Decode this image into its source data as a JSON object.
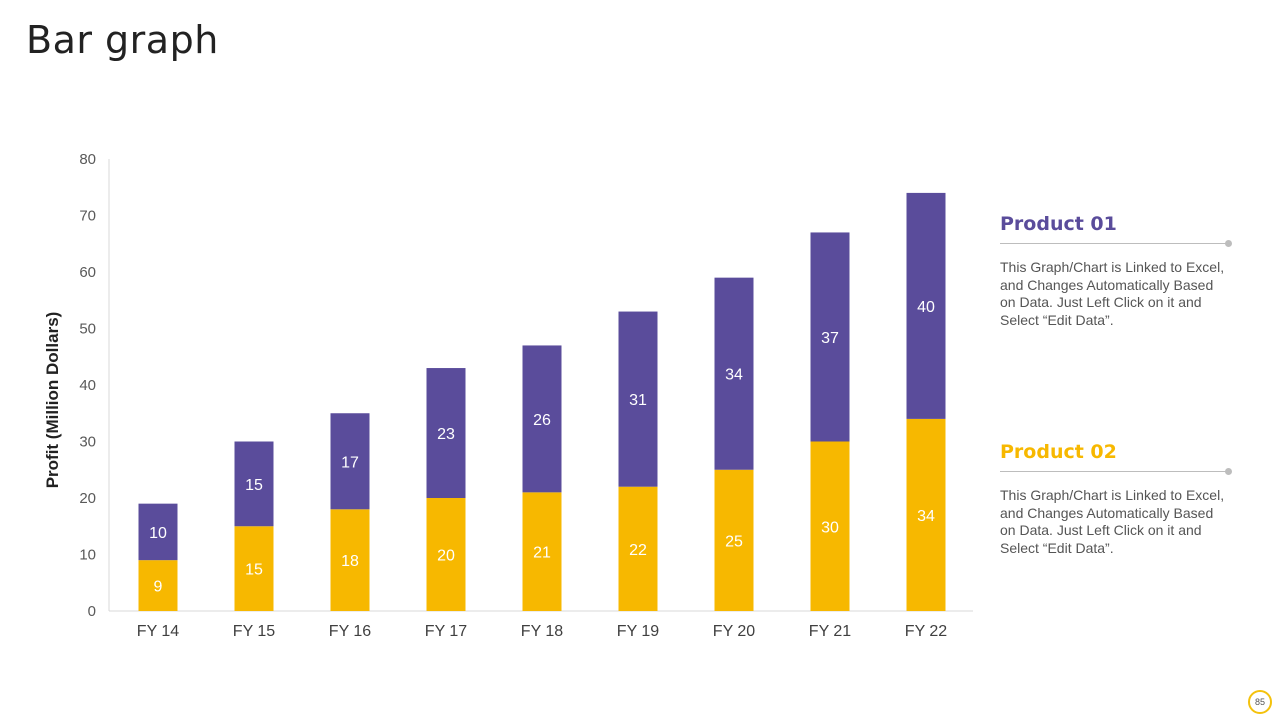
{
  "slide": {
    "title": "Bar graph",
    "page_number": "85"
  },
  "products": [
    {
      "title": "Product 01",
      "color": "#5a4c9b",
      "description": "This Graph/Chart is Linked to Excel, and Changes Automatically Based on Data. Just Left Click on it and Select “Edit Data”."
    },
    {
      "title": "Product 02",
      "color": "#f7b800",
      "description": "This Graph/Chart is Linked to Excel, and Changes Automatically Based on Data. Just Left Click on it and Select “Edit Data”."
    }
  ],
  "chart_data": {
    "type": "bar",
    "stacked": true,
    "categories": [
      "FY 14",
      "FY 15",
      "FY 16",
      "FY 17",
      "FY 18",
      "FY 19",
      "FY 20",
      "FY 21",
      "FY 22"
    ],
    "series": [
      {
        "values": [
          9,
          15,
          18,
          20,
          21,
          22,
          25,
          30,
          34
        ],
        "color": "#f7b800"
      },
      {
        "values": [
          10,
          15,
          17,
          23,
          26,
          31,
          34,
          37,
          40
        ],
        "color": "#5a4c9b"
      }
    ],
    "ylabel": "Profit  (Million Dollars)",
    "xlabel": "",
    "ylim": [
      0,
      80
    ],
    "yticks": [
      0,
      10,
      20,
      30,
      40,
      50,
      60,
      70,
      80
    ],
    "grid": false,
    "legend": "none",
    "data_labels": true
  }
}
